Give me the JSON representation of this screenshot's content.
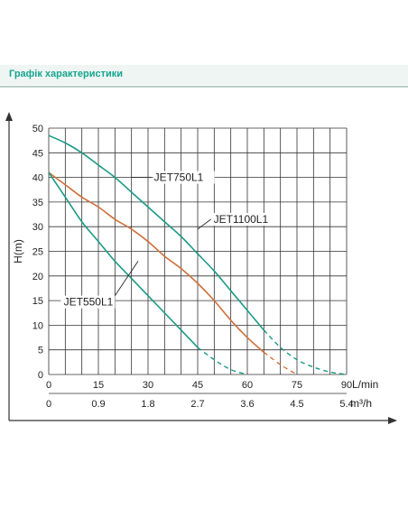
{
  "header": {
    "title": "Графік характеристики"
  },
  "chart_data": {
    "type": "line",
    "title": "",
    "ylabel": "H(m)",
    "xlabel_primary": "L/min",
    "xlabel_secondary": "m³/h",
    "xlim": [
      0,
      90
    ],
    "ylim": [
      0,
      50
    ],
    "x_ticks": [
      "0",
      "15",
      "30",
      "45",
      "60",
      "75",
      "90"
    ],
    "x2_ticks": [
      "0",
      "0.9",
      "1.8",
      "2.7",
      "3.6",
      "4.5",
      "5.4"
    ],
    "y_ticks": [
      "0",
      "5",
      "10",
      "15",
      "20",
      "25",
      "30",
      "35",
      "40",
      "45",
      "50"
    ],
    "grid": true,
    "series": [
      {
        "name": "JET750L1",
        "color": "#1a9a86",
        "points": [
          [
            0,
            48.5
          ],
          [
            5,
            47
          ],
          [
            10,
            45
          ],
          [
            15,
            42.5
          ],
          [
            20,
            40
          ],
          [
            25,
            37
          ],
          [
            30,
            34
          ],
          [
            35,
            31
          ],
          [
            40,
            28
          ],
          [
            45,
            24.5
          ],
          [
            50,
            21
          ],
          [
            55,
            17
          ],
          [
            60,
            13
          ],
          [
            65,
            9
          ],
          [
            70,
            5.5
          ],
          [
            75,
            3
          ],
          [
            80,
            1.5
          ],
          [
            85,
            0.5
          ],
          [
            90,
            0
          ]
        ],
        "dashed_from": 66
      },
      {
        "name": "JET1100L1",
        "color": "#d0703a",
        "points": [
          [
            0,
            41
          ],
          [
            5,
            38.5
          ],
          [
            10,
            36
          ],
          [
            15,
            34
          ],
          [
            20,
            31.5
          ],
          [
            25,
            29.5
          ],
          [
            30,
            27
          ],
          [
            35,
            24
          ],
          [
            40,
            21.5
          ],
          [
            45,
            18.5
          ],
          [
            50,
            15
          ],
          [
            55,
            11
          ],
          [
            60,
            7.5
          ],
          [
            65,
            4.5
          ],
          [
            70,
            2
          ],
          [
            75,
            0
          ]
        ],
        "dashed_from": 66
      },
      {
        "name": "JET550L1",
        "color": "#1a9a86",
        "points": [
          [
            0,
            41
          ],
          [
            5,
            36
          ],
          [
            10,
            31
          ],
          [
            15,
            27
          ],
          [
            20,
            23
          ],
          [
            25,
            19.5
          ],
          [
            30,
            16
          ],
          [
            35,
            12.5
          ],
          [
            40,
            9
          ],
          [
            45,
            5.5
          ],
          [
            50,
            3
          ],
          [
            55,
            1
          ],
          [
            60,
            0
          ]
        ],
        "dashed_from": 48
      }
    ],
    "annotations": [
      {
        "text": "JET750L1",
        "ax": 25,
        "ay": 40,
        "tx": 31,
        "ty": 40,
        "series": 0
      },
      {
        "text": "JET1100L1",
        "ax": 45,
        "ay": 29.5,
        "tx": 49,
        "ty": 31.5,
        "series": 1
      },
      {
        "text": "JET550L1",
        "ax": 27,
        "ay": 23,
        "tx": 20,
        "ty": 16,
        "series": 2
      }
    ]
  }
}
